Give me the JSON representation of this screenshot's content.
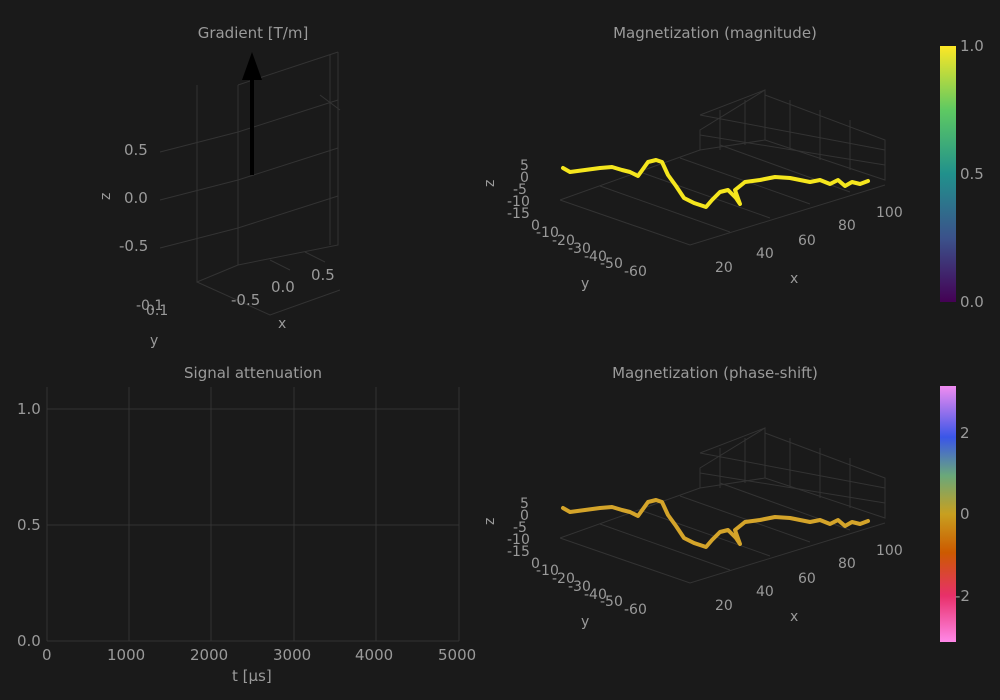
{
  "chart_data": [
    {
      "type": "3d-vector",
      "title": "Gradient [T/m]",
      "axes": {
        "x": {
          "label": "x",
          "ticks": [
            "-0.5",
            "0.0",
            "0.5"
          ]
        },
        "y": {
          "label": "y",
          "ticks": [
            "-0.1",
            "0.1"
          ]
        },
        "z": {
          "label": "z",
          "ticks": [
            "0.5",
            "0.0",
            "-0.5"
          ]
        }
      },
      "vector": {
        "x": 0,
        "y": 0,
        "z": 1
      }
    },
    {
      "type": "3d-line",
      "title": "Magnetization (magnitude)",
      "axes": {
        "x": {
          "label": "x",
          "ticks": [
            "20",
            "40",
            "60",
            "80",
            "100"
          ]
        },
        "y": {
          "label": "y",
          "ticks": [
            "0",
            "-10",
            "-20",
            "-30",
            "-40",
            "-50",
            "-60"
          ]
        },
        "z": {
          "label": "z",
          "ticks": [
            "5",
            "0",
            "-5",
            "-10",
            "-15"
          ]
        }
      },
      "colorbar": {
        "ticks": [
          "1.0",
          "0.5",
          "0.0"
        ],
        "range": [
          0,
          1
        ],
        "colorscale": "plasma"
      },
      "line_color": "#f5e61e"
    },
    {
      "type": "line",
      "title": "Signal attenuation",
      "xlabel": "t [µs]",
      "xticks": [
        "0",
        "1000",
        "2000",
        "3000",
        "4000",
        "5000"
      ],
      "yticks": [
        "1.0",
        "0.5",
        "0.0"
      ],
      "xlim": [
        0,
        5000
      ],
      "ylim": [
        0,
        1.1
      ],
      "series": []
    },
    {
      "type": "3d-line",
      "title": "Magnetization (phase-shift)",
      "axes": {
        "x": {
          "label": "x",
          "ticks": [
            "20",
            "40",
            "60",
            "80",
            "100"
          ]
        },
        "y": {
          "label": "y",
          "ticks": [
            "0",
            "-10",
            "-20",
            "-30",
            "-40",
            "-50",
            "-60"
          ]
        },
        "z": {
          "label": "z",
          "ticks": [
            "5",
            "0",
            "-5",
            "-10",
            "-15"
          ]
        }
      },
      "colorbar": {
        "ticks": [
          "2",
          "0",
          "-2"
        ],
        "range": [
          -3.14,
          3.14
        ],
        "colorscale": "phase"
      },
      "line_color": "#d4a42a"
    }
  ]
}
